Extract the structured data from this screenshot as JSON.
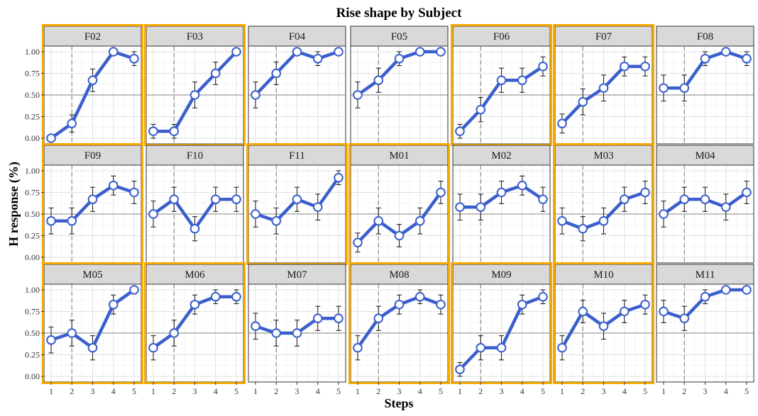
{
  "chart_data": {
    "type": "line",
    "title": "Rise shape by Subject",
    "xlabel": "Steps",
    "ylabel": "H response (%)",
    "x": [
      1,
      2,
      3,
      4,
      5
    ],
    "x_tick_labels": [
      "1",
      "2",
      "3",
      "4",
      "5"
    ],
    "ylim": [
      0,
      1
    ],
    "y_ticks": [
      0,
      0.25,
      0.5,
      0.75,
      1.0
    ],
    "y_tick_labels": [
      "0.00",
      "0.25",
      "0.50",
      "0.75",
      "1.00"
    ],
    "reference_line_y": 0.5,
    "dashed_line_x": 2,
    "grid": true,
    "series_color": "#3a5fcd",
    "highlight_color": "#f5a800",
    "panels": [
      {
        "name": "F02",
        "values": [
          0.0,
          0.17,
          0.67,
          1.0,
          0.92
        ],
        "errors": [
          0.0,
          0.1,
          0.13,
          0.0,
          0.08
        ],
        "highlight": true
      },
      {
        "name": "F03",
        "values": [
          0.08,
          0.08,
          0.5,
          0.75,
          1.0
        ],
        "errors": [
          0.08,
          0.08,
          0.15,
          0.13,
          0.0
        ],
        "highlight": true
      },
      {
        "name": "F04",
        "values": [
          0.5,
          0.75,
          1.0,
          0.92,
          1.0
        ],
        "errors": [
          0.15,
          0.13,
          0.0,
          0.08,
          0.0
        ],
        "highlight": false
      },
      {
        "name": "F05",
        "values": [
          0.5,
          0.67,
          0.92,
          1.0,
          1.0
        ],
        "errors": [
          0.15,
          0.14,
          0.08,
          0.0,
          0.0
        ],
        "highlight": false
      },
      {
        "name": "F06",
        "values": [
          0.08,
          0.33,
          0.67,
          0.67,
          0.83
        ],
        "errors": [
          0.08,
          0.14,
          0.14,
          0.14,
          0.11
        ],
        "highlight": true
      },
      {
        "name": "F07",
        "values": [
          0.17,
          0.42,
          0.58,
          0.83,
          0.83
        ],
        "errors": [
          0.11,
          0.15,
          0.15,
          0.11,
          0.11
        ],
        "highlight": true
      },
      {
        "name": "F08",
        "values": [
          0.58,
          0.58,
          0.92,
          1.0,
          0.92
        ],
        "errors": [
          0.15,
          0.15,
          0.08,
          0.0,
          0.08
        ],
        "highlight": false
      },
      {
        "name": "F09",
        "values": [
          0.42,
          0.42,
          0.67,
          0.83,
          0.75
        ],
        "errors": [
          0.15,
          0.15,
          0.14,
          0.11,
          0.13
        ],
        "highlight": true
      },
      {
        "name": "F10",
        "values": [
          0.5,
          0.67,
          0.33,
          0.67,
          0.67
        ],
        "errors": [
          0.15,
          0.14,
          0.14,
          0.14,
          0.14
        ],
        "highlight": false
      },
      {
        "name": "F11",
        "values": [
          0.5,
          0.42,
          0.67,
          0.58,
          0.92
        ],
        "errors": [
          0.15,
          0.15,
          0.14,
          0.15,
          0.08
        ],
        "highlight": true
      },
      {
        "name": "M01",
        "values": [
          0.17,
          0.42,
          0.25,
          0.42,
          0.75
        ],
        "errors": [
          0.11,
          0.15,
          0.13,
          0.15,
          0.13
        ],
        "highlight": true
      },
      {
        "name": "M02",
        "values": [
          0.58,
          0.58,
          0.75,
          0.83,
          0.67
        ],
        "errors": [
          0.15,
          0.15,
          0.13,
          0.11,
          0.14
        ],
        "highlight": false
      },
      {
        "name": "M03",
        "values": [
          0.42,
          0.33,
          0.42,
          0.67,
          0.75
        ],
        "errors": [
          0.15,
          0.14,
          0.15,
          0.14,
          0.13
        ],
        "highlight": true
      },
      {
        "name": "M04",
        "values": [
          0.5,
          0.67,
          0.67,
          0.58,
          0.75
        ],
        "errors": [
          0.15,
          0.14,
          0.14,
          0.15,
          0.13
        ],
        "highlight": false
      },
      {
        "name": "M05",
        "values": [
          0.42,
          0.5,
          0.33,
          0.83,
          1.0
        ],
        "errors": [
          0.15,
          0.15,
          0.14,
          0.11,
          0.0
        ],
        "highlight": true
      },
      {
        "name": "M06",
        "values": [
          0.33,
          0.5,
          0.83,
          0.92,
          0.92
        ],
        "errors": [
          0.14,
          0.15,
          0.11,
          0.08,
          0.08
        ],
        "highlight": true
      },
      {
        "name": "M07",
        "values": [
          0.58,
          0.5,
          0.5,
          0.67,
          0.67
        ],
        "errors": [
          0.15,
          0.15,
          0.15,
          0.14,
          0.14
        ],
        "highlight": false
      },
      {
        "name": "M08",
        "values": [
          0.33,
          0.67,
          0.83,
          0.92,
          0.83
        ],
        "errors": [
          0.14,
          0.14,
          0.11,
          0.08,
          0.11
        ],
        "highlight": true
      },
      {
        "name": "M09",
        "values": [
          0.08,
          0.33,
          0.33,
          0.83,
          0.92
        ],
        "errors": [
          0.08,
          0.14,
          0.14,
          0.11,
          0.08
        ],
        "highlight": true
      },
      {
        "name": "M10",
        "values": [
          0.33,
          0.75,
          0.58,
          0.75,
          0.83
        ],
        "errors": [
          0.14,
          0.13,
          0.15,
          0.13,
          0.11
        ],
        "highlight": true
      },
      {
        "name": "M11",
        "values": [
          0.75,
          0.67,
          0.92,
          1.0,
          1.0
        ],
        "errors": [
          0.13,
          0.14,
          0.08,
          0.0,
          0.0
        ],
        "highlight": false
      }
    ]
  }
}
